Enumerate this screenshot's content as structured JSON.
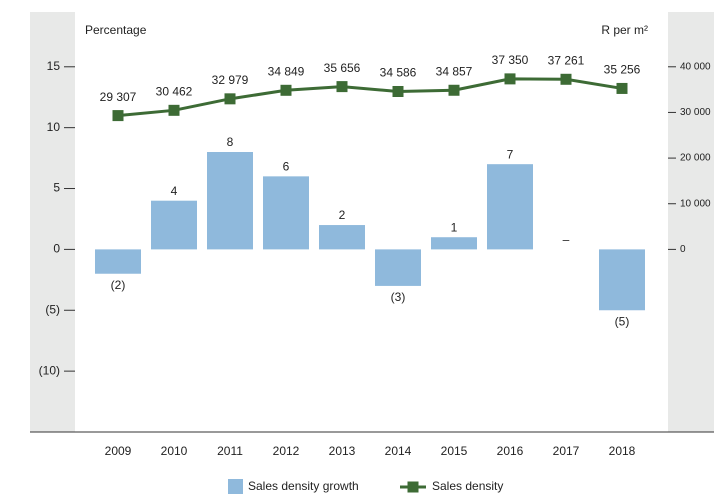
{
  "chart_data": {
    "type": "bar",
    "y_label": "Percentage",
    "y2_label": "R per m²",
    "categories": [
      "2009",
      "2010",
      "2011",
      "2012",
      "2013",
      "2014",
      "2015",
      "2016",
      "2017",
      "2018"
    ],
    "series": [
      {
        "name": "Sales density growth",
        "type": "bar",
        "color": "#8fb9dc",
        "values": [
          -2,
          4,
          8,
          6,
          2,
          -3,
          1,
          7,
          0,
          -5
        ],
        "value_labels": [
          "(2)",
          "4",
          "8",
          "6",
          "2",
          "(3)",
          "1",
          "7",
          "–",
          "(5)"
        ]
      },
      {
        "name": "Sales density",
        "type": "line",
        "axis": "y2",
        "color": "#3d6b35",
        "values": [
          29307,
          30462,
          32979,
          34849,
          35656,
          34586,
          34857,
          37350,
          37261,
          35256
        ],
        "value_labels": [
          "29 307",
          "30 462",
          "32 979",
          "34 849",
          "35 656",
          "34 586",
          "34 857",
          "37 350",
          "37 261",
          "35 256"
        ]
      }
    ],
    "ylim": [
      -15,
      19.5
    ],
    "yticks": [
      15,
      10,
      5,
      0,
      {
        "value": -5,
        "label": "(5)"
      },
      {
        "value": -10,
        "label": "(10)"
      }
    ],
    "y2lim": [
      -40000,
      52000
    ],
    "y2ticks": [
      {
        "value": 40000,
        "label": "40 000"
      },
      {
        "value": 30000,
        "label": "30 000"
      },
      {
        "value": 20000,
        "label": "20 000"
      },
      {
        "value": 10000,
        "label": "10 000"
      },
      0
    ],
    "grid": false,
    "legend": "bottom"
  }
}
